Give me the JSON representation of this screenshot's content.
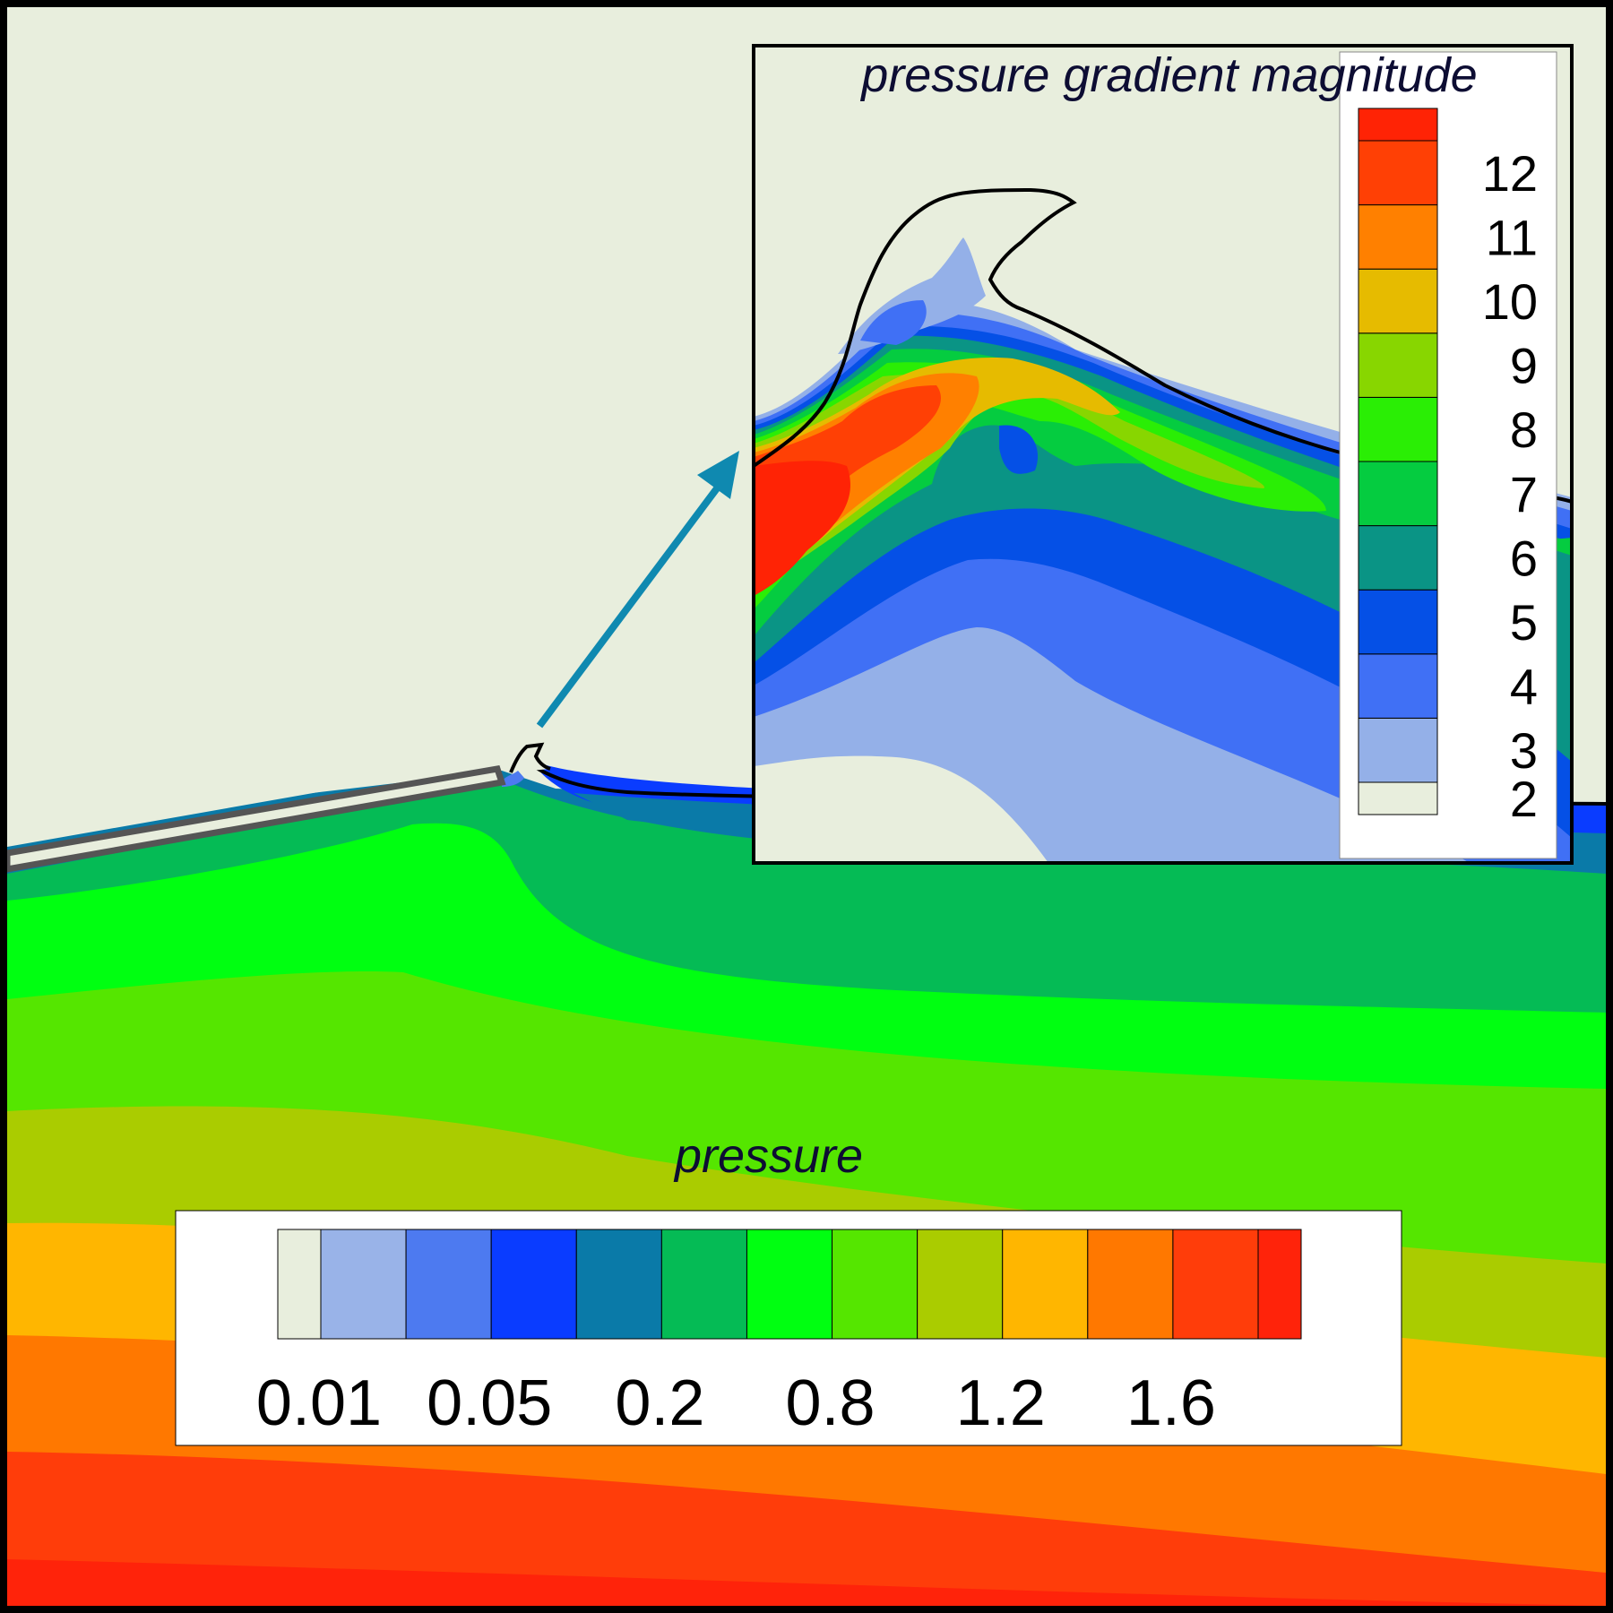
{
  "main_plot": {
    "quantity": "pressure",
    "colorbar": {
      "colors": [
        "#e8eedd",
        "#99b3e8",
        "#4d7af0",
        "#0a3cff",
        "#0a7aa8",
        "#05bb55",
        "#00ff11",
        "#55e600",
        "#aacc00",
        "#ffb600",
        "#ff7800",
        "#ff3d0a",
        "#ff230a"
      ],
      "tick_labels": [
        "0.01",
        "0.05",
        "0.2",
        "0.8",
        "1.2",
        "1.6"
      ],
      "tick_boundaries": [
        1,
        3,
        5,
        7,
        9,
        11
      ]
    },
    "annotations": {
      "zoom_arrow_color": "#0f89b0"
    }
  },
  "inset": {
    "quantity": "pressure gradient magnitude",
    "colorbar": {
      "colors": [
        "#e8eedd",
        "#94b0e8",
        "#4070f5",
        "#0550e6",
        "#0a9485",
        "#05cc40",
        "#2aee05",
        "#88d600",
        "#e6bb00",
        "#ff8000",
        "#ff4005",
        "#ff2305"
      ],
      "tick_labels": [
        "2",
        "3",
        "4",
        "5",
        "6",
        "7",
        "8",
        "9",
        "10",
        "11",
        "12"
      ]
    }
  }
}
